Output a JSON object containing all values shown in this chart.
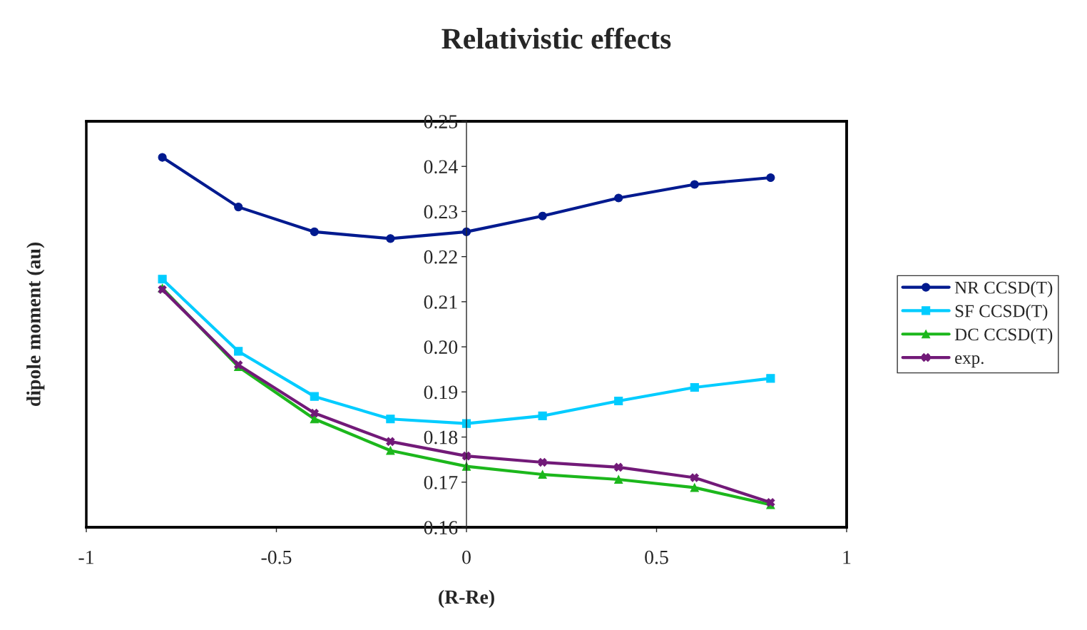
{
  "chart_data": {
    "type": "line",
    "title": "Relativistic effects",
    "xlabel": "(R-Re)",
    "ylabel": "dipole moment (au)",
    "x": [
      -0.8,
      -0.6,
      -0.4,
      -0.2,
      0,
      0.2,
      0.4,
      0.6,
      0.8
    ],
    "series": [
      {
        "name": "NR CCSD(T)",
        "color": "#001a8f",
        "marker": "circle",
        "values": [
          0.242,
          0.231,
          0.2255,
          0.224,
          0.2255,
          0.229,
          0.233,
          0.236,
          0.2375
        ]
      },
      {
        "name": "SF CCSD(T)",
        "color": "#00ccff",
        "marker": "square",
        "values": [
          0.215,
          0.199,
          0.189,
          0.184,
          0.183,
          0.1847,
          0.188,
          0.191,
          0.193
        ]
      },
      {
        "name": "DC CCSD(T)",
        "color": "#1cb71c",
        "marker": "triangle",
        "values": [
          0.213,
          0.1956,
          0.184,
          0.177,
          0.1735,
          0.1717,
          0.1706,
          0.1688,
          0.165
        ]
      },
      {
        "name": "exp.",
        "color": "#721a78",
        "marker": "cross",
        "values": [
          0.2127,
          0.196,
          0.1853,
          0.179,
          0.1758,
          0.1744,
          0.1733,
          0.171,
          0.1655
        ]
      }
    ],
    "xlim": [
      -1,
      1
    ],
    "xticks": [
      -1,
      -0.5,
      0,
      0.5,
      1
    ],
    "ylim": [
      0.16,
      0.25
    ],
    "yticks": [
      {
        "value": 0.16,
        "label": "0.16"
      },
      {
        "value": 0.17,
        "label": "0.17"
      },
      {
        "value": 0.18,
        "label": "0.18"
      },
      {
        "value": 0.19,
        "label": "0.19"
      },
      {
        "value": 0.2,
        "label": "0.20"
      },
      {
        "value": 0.21,
        "label": "0.21"
      },
      {
        "value": 0.22,
        "label": "0.22"
      },
      {
        "value": 0.23,
        "label": "0.23"
      },
      {
        "value": 0.24,
        "label": "0.24"
      },
      {
        "value": 0.25,
        "label": "0.25"
      }
    ],
    "grid": false,
    "legend": "right",
    "line_style": "solid"
  }
}
